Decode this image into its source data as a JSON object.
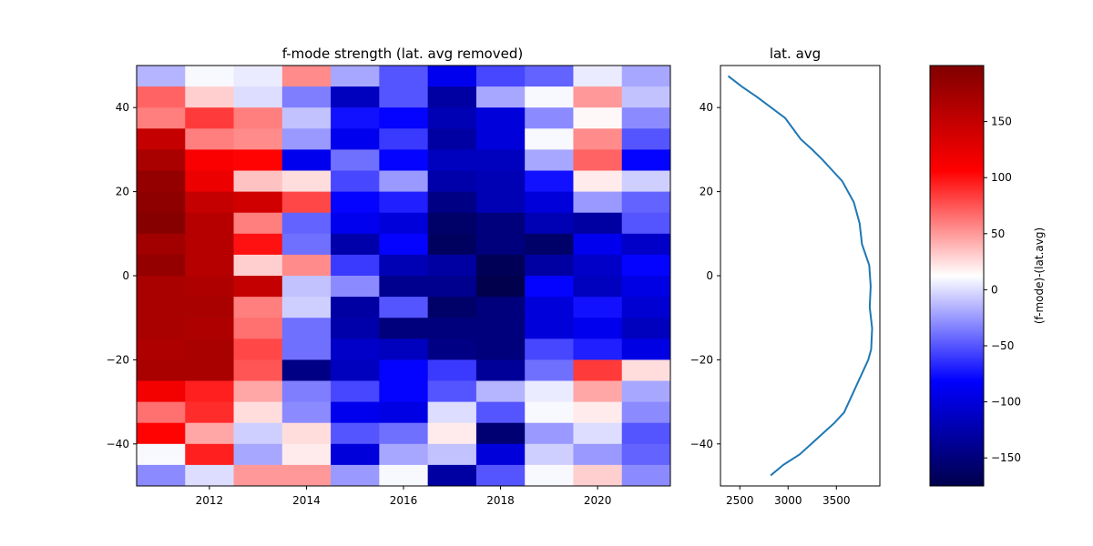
{
  "chart_data": [
    {
      "type": "heatmap",
      "title": "f-mode strength (lat. avg removed)",
      "x_ticks": [
        2012,
        2014,
        2016,
        2018,
        2020
      ],
      "y_ticks": [
        -40,
        -20,
        0,
        20,
        40
      ],
      "x_range": [
        2010.5,
        2021.5
      ],
      "y_range": [
        -50,
        50
      ],
      "x_centers": [
        2011,
        2012,
        2013,
        2014,
        2015,
        2016,
        2017,
        2018,
        2019,
        2020,
        2021
      ],
      "y_centers": [
        47.5,
        42.5,
        37.5,
        32.5,
        27.5,
        22.5,
        17.5,
        12.5,
        7.5,
        2.5,
        -2.5,
        -7.5,
        -12.5,
        -17.5,
        -22.5,
        -27.5,
        -32.5,
        -37.5,
        -42.5,
        -47.5
      ],
      "rows": [
        [
          -15,
          10,
          5,
          55,
          -20,
          -50,
          -90,
          -55,
          -45,
          5,
          -20
        ],
        [
          70,
          30,
          0,
          -35,
          -115,
          -50,
          -130,
          -20,
          10,
          50,
          -10
        ],
        [
          60,
          85,
          60,
          -10,
          -75,
          -80,
          -120,
          -100,
          -30,
          15,
          -30
        ],
        [
          150,
          60,
          55,
          -25,
          -90,
          -60,
          -130,
          -100,
          10,
          55,
          -50
        ],
        [
          170,
          110,
          105,
          -90,
          -40,
          -80,
          -115,
          -115,
          -20,
          70,
          -80
        ],
        [
          185,
          120,
          35,
          25,
          -55,
          -25,
          -125,
          -120,
          -75,
          20,
          -5
        ],
        [
          190,
          150,
          140,
          80,
          -80,
          -70,
          -145,
          -120,
          -100,
          -25,
          -45
        ],
        [
          195,
          160,
          60,
          -45,
          -90,
          -100,
          -160,
          -150,
          -120,
          -130,
          -50
        ],
        [
          175,
          160,
          100,
          -40,
          -125,
          -80,
          -165,
          -150,
          -160,
          -90,
          -110
        ],
        [
          185,
          160,
          30,
          55,
          -60,
          -120,
          -130,
          -170,
          -130,
          -110,
          -80
        ],
        [
          170,
          165,
          150,
          -10,
          -30,
          -140,
          -140,
          -175,
          -80,
          -115,
          -95
        ],
        [
          170,
          170,
          60,
          -5,
          -130,
          -50,
          -160,
          -150,
          -100,
          -75,
          -105
        ],
        [
          170,
          165,
          65,
          -40,
          -125,
          -150,
          -150,
          -150,
          -100,
          -90,
          -115
        ],
        [
          165,
          170,
          80,
          -40,
          -110,
          -115,
          -145,
          -150,
          -55,
          -70,
          -95
        ],
        [
          170,
          170,
          75,
          -145,
          -115,
          -80,
          -60,
          -135,
          -40,
          85,
          25
        ],
        [
          115,
          95,
          45,
          -35,
          -55,
          -80,
          -50,
          -15,
          5,
          45,
          -20
        ],
        [
          65,
          90,
          25,
          -30,
          -90,
          -95,
          0,
          -50,
          10,
          20,
          -30
        ],
        [
          105,
          45,
          -5,
          25,
          -50,
          -40,
          20,
          -155,
          -25,
          0,
          -50
        ],
        [
          10,
          95,
          -20,
          20,
          -100,
          -20,
          -10,
          -100,
          -5,
          -25,
          -45
        ],
        [
          -30,
          0,
          50,
          50,
          -25,
          10,
          -130,
          -50,
          10,
          30,
          -30
        ]
      ]
    },
    {
      "type": "line",
      "title": "lat. avg",
      "x_ticks": [
        2500,
        3000,
        3500
      ],
      "y_ticks": [
        -40,
        -20,
        0,
        20,
        40
      ],
      "x_range": [
        2300,
        3950
      ],
      "y_range": [
        -50,
        50
      ],
      "series": [
        {
          "x": [
            2380,
            2520,
            2680,
            2970,
            3130,
            3250,
            3360,
            3460,
            3560,
            3680,
            3740,
            3765,
            3840,
            3855,
            3845,
            3870,
            3860,
            3830,
            3680,
            3580,
            3480,
            3360,
            3120,
            2950,
            2820
          ],
          "y": [
            47.5,
            45,
            42.5,
            37.5,
            32.5,
            30,
            27.5,
            25,
            22.5,
            17.5,
            12.5,
            7.5,
            2.5,
            -2.5,
            -7.5,
            -12.5,
            -17.5,
            -20,
            -27.5,
            -32.5,
            -35,
            -37.5,
            -42.5,
            -45,
            -47.5
          ],
          "color": "#1f77b4"
        }
      ]
    },
    {
      "type": "colorbar",
      "label": "(f-mode)-(lat.avg)",
      "range": [
        -175,
        200
      ],
      "ticks": [
        -150,
        -100,
        -50,
        0,
        50,
        100,
        150
      ],
      "tick_labels": [
        "−150",
        "−100",
        "−50",
        "0",
        "50",
        "100",
        "150"
      ],
      "colormap": "seismic"
    }
  ]
}
